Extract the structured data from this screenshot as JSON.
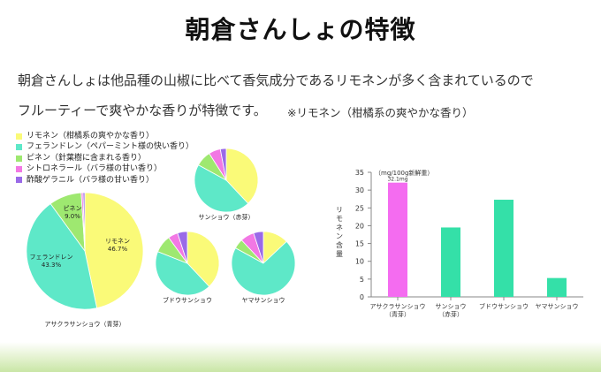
{
  "page": {
    "title": "朝倉さんしょの特徴",
    "intro_line1": "朝倉さんしょは他品種の山椒に比べて香気成分であるリモネンが多く含まれているので",
    "intro_line2": "フルーティーで爽やかな香りが特徴です。",
    "note": "※リモネン（柑橘系の爽やかな香り）"
  },
  "legend": [
    {
      "label": "リモネン（柑橘系の爽やかな香り）",
      "color": "#fafa78"
    },
    {
      "label": "フェランドレン（ペパーミント様の快い香り）",
      "color": "#5ee8c8"
    },
    {
      "label": "ピネン（針葉樹に含まれる香り）",
      "color": "#9ee870"
    },
    {
      "label": "シトロネラール（バラ様の甘い香り）",
      "color": "#f278e4"
    },
    {
      "label": "酢酸ゲラニル（バラ様の甘い香り）",
      "color": "#9a6ae8"
    }
  ],
  "chart_data": [
    {
      "type": "pie",
      "title": "アサクラサンショウ（青芽）",
      "labels": [
        "リモネン",
        "フェランドレン",
        "ピネン",
        "シトロネラール",
        "酢酸ゲラニル"
      ],
      "values": [
        46.7,
        43.3,
        9.0,
        0.5,
        0.5
      ],
      "data_labels": [
        {
          "name": "リモネン",
          "value": "46.7%"
        },
        {
          "name": "フェランドレン",
          "value": "43.3%"
        },
        {
          "name": "ピネン",
          "value": "9.0%"
        }
      ]
    },
    {
      "type": "pie",
      "title": "サンショウ（赤芽）",
      "labels": [
        "リモネン",
        "フェランドレン",
        "ピネン",
        "シトロネラール",
        "酢酸ゲラニル"
      ],
      "values": [
        38,
        45,
        8,
        6,
        3
      ]
    },
    {
      "type": "pie",
      "title": "ブドウサンショウ",
      "labels": [
        "リモネン",
        "フェランドレン",
        "ピネン",
        "シトロネラール",
        "酢酸ゲラニル"
      ],
      "values": [
        38,
        43,
        9,
        5,
        5
      ]
    },
    {
      "type": "pie",
      "title": "ヤマサンショウ",
      "labels": [
        "リモネン",
        "フェランドレン",
        "ピネン",
        "シトロネラール",
        "酢酸ゲラニル"
      ],
      "values": [
        13,
        70,
        5,
        7,
        5
      ]
    },
    {
      "type": "bar",
      "categories": [
        [
          "アサクラサンショウ",
          "（青芽）"
        ],
        [
          "サンショウ",
          "（赤芽）"
        ],
        [
          "ブドウサンショウ"
        ],
        [
          "ヤマサンショウ"
        ]
      ],
      "values": [
        32.1,
        19.5,
        27.3,
        5.3
      ],
      "colors": [
        "#f46cf0",
        "#34e0a8",
        "#34e0a8",
        "#34e0a8"
      ],
      "ylabel": "リモネン含量",
      "unit": "（mg/100g新鮮重）",
      "value_label": "32.1mg",
      "ylim": [
        0,
        35
      ],
      "yticks": [
        0,
        5,
        10,
        15,
        20,
        25,
        30,
        35
      ],
      "grid": false
    }
  ]
}
